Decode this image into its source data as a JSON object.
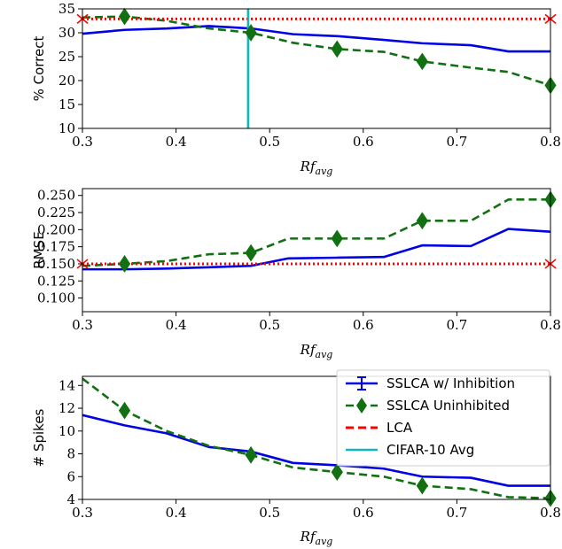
{
  "figure_colors": {
    "sslca_inhibition": "#0000e6",
    "sslca_uninhibited": "#117011",
    "lca": "#ff0000",
    "cifar": "#12b8b8"
  },
  "legend": {
    "items": [
      {
        "label": "SSLCA w/ Inhibition",
        "key": "sslca_inhibition"
      },
      {
        "label": "SSLCA Uninhibited",
        "key": "sslca_uninhibited"
      },
      {
        "label": "LCA",
        "key": "lca"
      },
      {
        "label": "CIFAR-10 Avg",
        "key": "cifar"
      }
    ]
  },
  "chart_data": [
    {
      "type": "line",
      "ylabel": "% Correct",
      "xlabel_base": "Rf",
      "xlabel_sub": "avg",
      "xlim": [
        0.3,
        0.8
      ],
      "ylim": [
        10,
        35
      ],
      "xticks": [
        "0.3",
        "0.4",
        "0.5",
        "0.6",
        "0.7",
        "0.8"
      ],
      "yticks": [
        "10",
        "15",
        "20",
        "25",
        "30",
        "35"
      ],
      "series": [
        {
          "key": "sslca_inhibition",
          "x": [
            0.3,
            0.345,
            0.39,
            0.435,
            0.48,
            0.525,
            0.572,
            0.622,
            0.663,
            0.715,
            0.755,
            0.8
          ],
          "y": [
            29.8,
            30.6,
            30.9,
            31.4,
            30.9,
            29.7,
            29.3,
            28.5,
            27.8,
            27.4,
            26.1,
            26.1
          ]
        },
        {
          "key": "sslca_uninhibited",
          "markers": [
            1,
            4,
            6,
            8,
            11
          ],
          "x": [
            0.3,
            0.345,
            0.39,
            0.435,
            0.48,
            0.525,
            0.572,
            0.622,
            0.663,
            0.715,
            0.755,
            0.8
          ],
          "y": [
            33.2,
            33.4,
            32.5,
            30.9,
            30.0,
            27.9,
            26.6,
            26.0,
            24.0,
            22.7,
            21.8,
            19.0
          ]
        },
        {
          "key": "lca",
          "style": "hline",
          "y": 32.9
        },
        {
          "key": "cifar",
          "style": "vline",
          "x": 0.477
        }
      ]
    },
    {
      "type": "line",
      "ylabel": "RMSE",
      "xlabel_base": "Rf",
      "xlabel_sub": "avg",
      "xlim": [
        0.3,
        0.8
      ],
      "ylim": [
        0.08,
        0.26
      ],
      "xticks": [
        "0.3",
        "0.4",
        "0.5",
        "0.6",
        "0.7",
        "0.8"
      ],
      "yticks": [
        "0.100",
        "0.125",
        "0.150",
        "0.175",
        "0.200",
        "0.225",
        "0.250"
      ],
      "series": [
        {
          "key": "sslca_inhibition",
          "x": [
            0.3,
            0.345,
            0.39,
            0.435,
            0.48,
            0.52,
            0.572,
            0.622,
            0.663,
            0.715,
            0.755,
            0.8
          ],
          "y": [
            0.142,
            0.142,
            0.143,
            0.145,
            0.147,
            0.158,
            0.159,
            0.16,
            0.177,
            0.176,
            0.201,
            0.197
          ]
        },
        {
          "key": "sslca_uninhibited",
          "markers": [
            1,
            4,
            6,
            8,
            11
          ],
          "x": [
            0.3,
            0.345,
            0.39,
            0.435,
            0.48,
            0.52,
            0.572,
            0.622,
            0.663,
            0.715,
            0.755,
            0.8
          ],
          "y": [
            0.147,
            0.15,
            0.154,
            0.164,
            0.166,
            0.187,
            0.187,
            0.187,
            0.213,
            0.213,
            0.244,
            0.244
          ]
        },
        {
          "key": "lca",
          "style": "hline",
          "y": 0.15
        }
      ]
    },
    {
      "type": "line",
      "ylabel": "# Spikes",
      "xlabel_base": "Rf",
      "xlabel_sub": "avg",
      "xlim": [
        0.3,
        0.8
      ],
      "ylim": [
        4,
        14.8
      ],
      "xticks": [
        "0.3",
        "0.4",
        "0.5",
        "0.6",
        "0.7",
        "0.8"
      ],
      "yticks": [
        "4",
        "6",
        "8",
        "10",
        "12",
        "14"
      ],
      "series": [
        {
          "key": "sslca_inhibition",
          "x": [
            0.3,
            0.345,
            0.39,
            0.435,
            0.48,
            0.525,
            0.572,
            0.622,
            0.663,
            0.715,
            0.755,
            0.8
          ],
          "y": [
            11.4,
            10.5,
            9.8,
            8.6,
            8.2,
            7.2,
            7.0,
            6.7,
            6.0,
            5.9,
            5.2,
            5.2
          ]
        },
        {
          "key": "sslca_uninhibited",
          "markers": [
            1,
            4,
            6,
            8,
            11
          ],
          "x": [
            0.3,
            0.345,
            0.39,
            0.435,
            0.48,
            0.525,
            0.572,
            0.622,
            0.663,
            0.715,
            0.755,
            0.8
          ],
          "y": [
            14.6,
            11.8,
            10.0,
            8.7,
            7.9,
            6.8,
            6.4,
            6.0,
            5.2,
            4.9,
            4.2,
            4.1
          ]
        }
      ]
    }
  ]
}
